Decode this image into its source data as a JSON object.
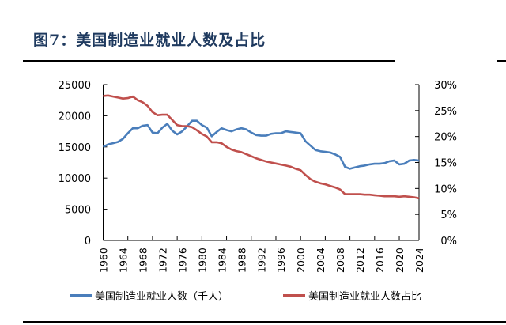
{
  "title": "图7：美国制造业就业人数及占比",
  "chart_data": {
    "type": "line",
    "title": "图7：美国制造业就业人数及占比",
    "x": [
      1960,
      1961,
      1962,
      1963,
      1964,
      1965,
      1966,
      1967,
      1968,
      1969,
      1970,
      1971,
      1972,
      1973,
      1974,
      1975,
      1976,
      1977,
      1978,
      1979,
      1980,
      1981,
      1982,
      1983,
      1984,
      1985,
      1986,
      1987,
      1988,
      1989,
      1990,
      1991,
      1992,
      1993,
      1994,
      1995,
      1996,
      1997,
      1998,
      1999,
      2000,
      2001,
      2002,
      2003,
      2004,
      2005,
      2006,
      2007,
      2008,
      2009,
      2010,
      2011,
      2012,
      2013,
      2014,
      2015,
      2016,
      2017,
      2018,
      2019,
      2020,
      2021,
      2022,
      2023,
      2024
    ],
    "x_tick_labels": [
      "1960",
      "1964",
      "1968",
      "1972",
      "1976",
      "1980",
      "1984",
      "1988",
      "1992",
      "1996",
      "2000",
      "2004",
      "2008",
      "2012",
      "2016",
      "2020",
      "2024"
    ],
    "y_left": {
      "ylim": [
        0,
        25000
      ],
      "tick_labels": [
        "0",
        "5000",
        "10000",
        "15000",
        "20000",
        "25000"
      ]
    },
    "y_right": {
      "ylim": [
        0,
        30
      ],
      "tick_labels": [
        "0%",
        "5%",
        "10%",
        "15%",
        "20%",
        "25%",
        "30%"
      ]
    },
    "legend_position": "bottom",
    "grid": false,
    "series": [
      {
        "name": "美国制造业就业人数（千人）",
        "axis": "left",
        "color": "#4a7ebb",
        "values": [
          15000,
          15400,
          15600,
          15800,
          16300,
          17200,
          18000,
          18000,
          18400,
          18500,
          17300,
          17200,
          18100,
          18700,
          17600,
          17000,
          17500,
          18300,
          19200,
          19200,
          18500,
          18100,
          16700,
          17400,
          18000,
          17700,
          17500,
          17800,
          18000,
          17800,
          17300,
          16900,
          16800,
          16800,
          17100,
          17200,
          17200,
          17500,
          17400,
          17300,
          17200,
          15900,
          15200,
          14500,
          14300,
          14200,
          14100,
          13800,
          13400,
          11800,
          11500,
          11700,
          11900,
          12000,
          12200,
          12300,
          12300,
          12400,
          12700,
          12800,
          12200,
          12300,
          12800,
          12900,
          12800
        ]
      },
      {
        "name": "美国制造业就业人数占比",
        "axis": "right",
        "color": "#c0504d",
        "values": [
          27.8,
          27.9,
          27.7,
          27.5,
          27.3,
          27.4,
          27.7,
          27.0,
          26.6,
          25.9,
          24.7,
          24.1,
          24.2,
          24.2,
          23.2,
          22.2,
          22.0,
          22.0,
          21.8,
          21.2,
          20.5,
          20.0,
          18.9,
          18.9,
          18.7,
          18.0,
          17.5,
          17.2,
          17.0,
          16.6,
          16.2,
          15.8,
          15.5,
          15.2,
          15.0,
          14.8,
          14.6,
          14.4,
          14.2,
          13.8,
          13.5,
          12.6,
          11.8,
          11.3,
          11.0,
          10.8,
          10.5,
          10.2,
          9.8,
          8.9,
          8.9,
          8.9,
          8.9,
          8.8,
          8.8,
          8.7,
          8.6,
          8.5,
          8.5,
          8.5,
          8.4,
          8.5,
          8.4,
          8.3,
          8.1
        ]
      }
    ]
  }
}
